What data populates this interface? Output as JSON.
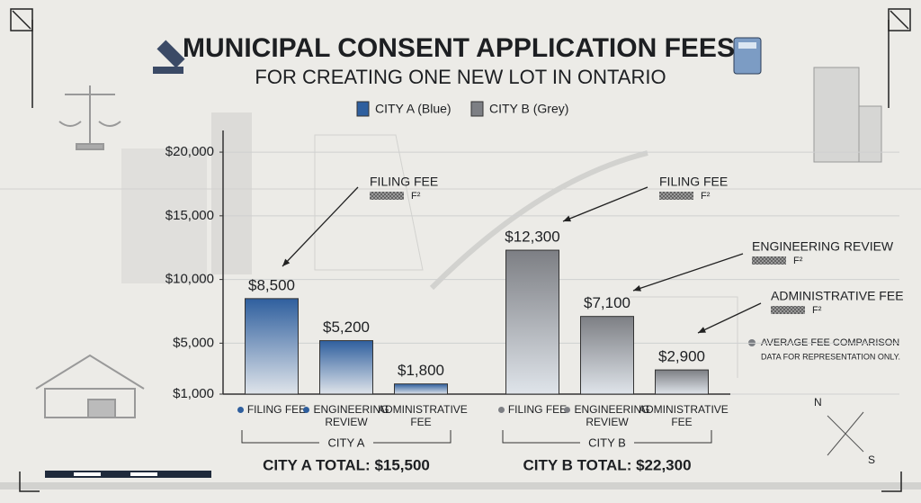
{
  "chart_data": {
    "type": "bar",
    "title": "MUNICIPAL CONSENT APPLICATION FEES",
    "subtitle": "FOR CREATING ONE NEW LOT IN ONTARIO",
    "categories": [
      "FILING FEE",
      "ENGINEERING REVIEW",
      "ADMINISTRATIVE FEE"
    ],
    "series": [
      {
        "name": "CITY A (Blue)",
        "color": "#2f5f9e",
        "group": "CITY A",
        "total": "CITY A TOTAL: $15,500",
        "values": [
          8500,
          5200,
          1800
        ],
        "value_labels": [
          "$8,500",
          "$5,200",
          "$1,800"
        ]
      },
      {
        "name": "CITY B (Grey)",
        "color": "#7d7f84",
        "group": "CITY B",
        "total": "CITY B TOTAL: $22,300",
        "values": [
          12300,
          7100,
          2900
        ],
        "value_labels": [
          "$12,300",
          "$7,100",
          "$2,900"
        ]
      }
    ],
    "ylim": [
      1000,
      21700
    ],
    "yticks": [
      {
        "value": 1000,
        "label": "$1,000"
      },
      {
        "value": 5000,
        "label": "$5,000"
      },
      {
        "value": 10000,
        "label": "$10,000"
      },
      {
        "value": 15000,
        "label": "$15,000"
      },
      {
        "value": 20000,
        "label": "$20,000"
      }
    ],
    "grid": true,
    "annotations": [
      {
        "text": "FILING FEE",
        "mark": "F²"
      },
      {
        "text": "FILING FEE",
        "mark": "F²"
      },
      {
        "text": "ENGINEERING REVIEW",
        "mark": "F²"
      },
      {
        "text": "ADMINISTRATIVE FEE",
        "mark": "F²"
      }
    ],
    "note": [
      "AVERAGE FEE COMPARISON",
      "DATA FOR REPRESENTATION ONLY."
    ]
  },
  "compass": {
    "n": "N",
    "s": "S"
  }
}
